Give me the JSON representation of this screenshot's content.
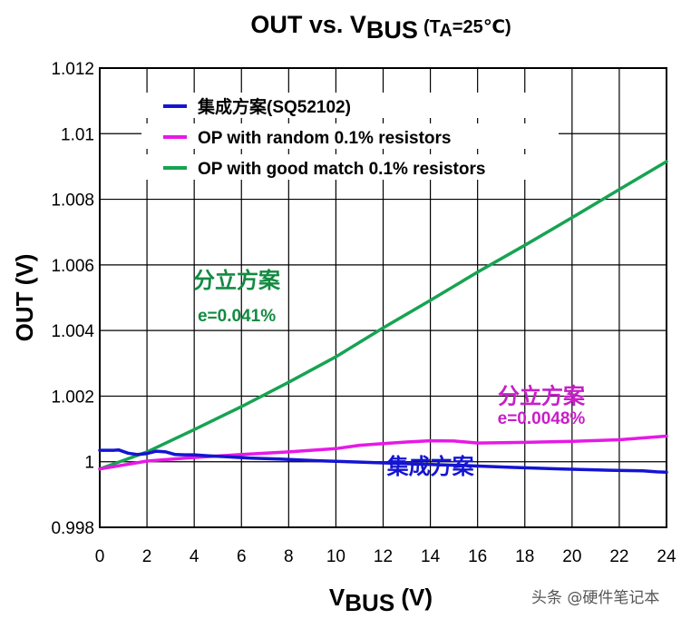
{
  "chart_data": {
    "type": "line",
    "title": {
      "prefix": "OUT vs. V",
      "prefix_sub": "BUS",
      "cond": "(T",
      "cond_sub": "A",
      "cond_rest": "=25℃)"
    },
    "xlabel": {
      "main": "V",
      "sub": "BUS",
      "unit": " (V)"
    },
    "ylabel": "OUT (V)",
    "xlim": [
      0,
      24
    ],
    "ylim": [
      0.998,
      1.012
    ],
    "xticks": [
      0,
      2,
      4,
      6,
      8,
      10,
      12,
      14,
      16,
      18,
      20,
      22,
      24
    ],
    "xtick_labels": [
      "0",
      "2",
      "4",
      "6",
      "8",
      "10",
      "12",
      "14",
      "16",
      "18",
      "20",
      "22",
      "24"
    ],
    "yticks": [
      0.998,
      1.0,
      1.002,
      1.004,
      1.006,
      1.008,
      1.01,
      1.012
    ],
    "ytick_labels": [
      "0.998",
      "1",
      "1.002",
      "1.004",
      "1.006",
      "1.008",
      "1.01",
      "1.012"
    ],
    "grid": true,
    "legend_position": "top-left",
    "series": [
      {
        "name": "集成方案(SQ52102)",
        "color": "#1414d2",
        "x": [
          0,
          0.6,
          0.8,
          1.2,
          1.6,
          2.0,
          2.4,
          2.8,
          3.2,
          3.6,
          4.0,
          4.6,
          5.4,
          6.4,
          7.6,
          9.2,
          11.0,
          13.0,
          15.2,
          17.4,
          19.6,
          21.6,
          23.0,
          23.6,
          24
        ],
        "y": [
          1.00035,
          1.00035,
          1.00036,
          1.00026,
          1.00022,
          1.00025,
          1.00032,
          1.0003,
          1.00022,
          1.00021,
          1.00021,
          1.00018,
          1.00015,
          1.00011,
          1.00008,
          1.00003,
          0.99999,
          0.99994,
          0.99989,
          0.99983,
          0.99978,
          0.99974,
          0.99972,
          0.99969,
          0.99968
        ]
      },
      {
        "name": "OP with random 0.1% resistors",
        "color": "#e619e6",
        "x": [
          0,
          2,
          4,
          6,
          8,
          10,
          11,
          12,
          13,
          14,
          15,
          16,
          18,
          20,
          22,
          24
        ],
        "y": [
          0.99978,
          1.00002,
          1.00013,
          1.00022,
          1.0003,
          1.0004,
          1.0005,
          1.00055,
          1.0006,
          1.00064,
          1.00063,
          1.00057,
          1.00059,
          1.00062,
          1.00067,
          1.00078
        ]
      },
      {
        "name": "OP with good match 0.1% resistors",
        "color": "#17a352",
        "x": [
          0,
          2,
          4,
          6,
          8,
          10,
          12,
          14,
          16,
          18,
          20,
          22,
          24
        ],
        "y": [
          0.99978,
          1.0003,
          1.00098,
          1.00168,
          1.00242,
          1.0032,
          1.00408,
          1.00492,
          1.00578,
          1.0066,
          1.00744,
          1.0083,
          1.00915
        ]
      }
    ],
    "annotations": [
      {
        "text": "分立方案",
        "color": "#138a42",
        "style": "label",
        "x": 5.8,
        "y": 1.0053
      },
      {
        "text": "e=0.041%",
        "color": "#138a42",
        "style": "eq",
        "x": 5.8,
        "y": 1.00428
      },
      {
        "text": "分立方案",
        "color": "#c81ec8",
        "style": "label",
        "x": 18.7,
        "y": 1.00178
      },
      {
        "text": "e=0.0048%",
        "color": "#c81ec8",
        "style": "eq",
        "x": 18.7,
        "y": 1.00116
      },
      {
        "text": "集成方案",
        "color": "#1414d2",
        "style": "label",
        "x": 14.0,
        "y": 0.99963
      }
    ]
  },
  "watermark": "头条 @硬件笔记本"
}
